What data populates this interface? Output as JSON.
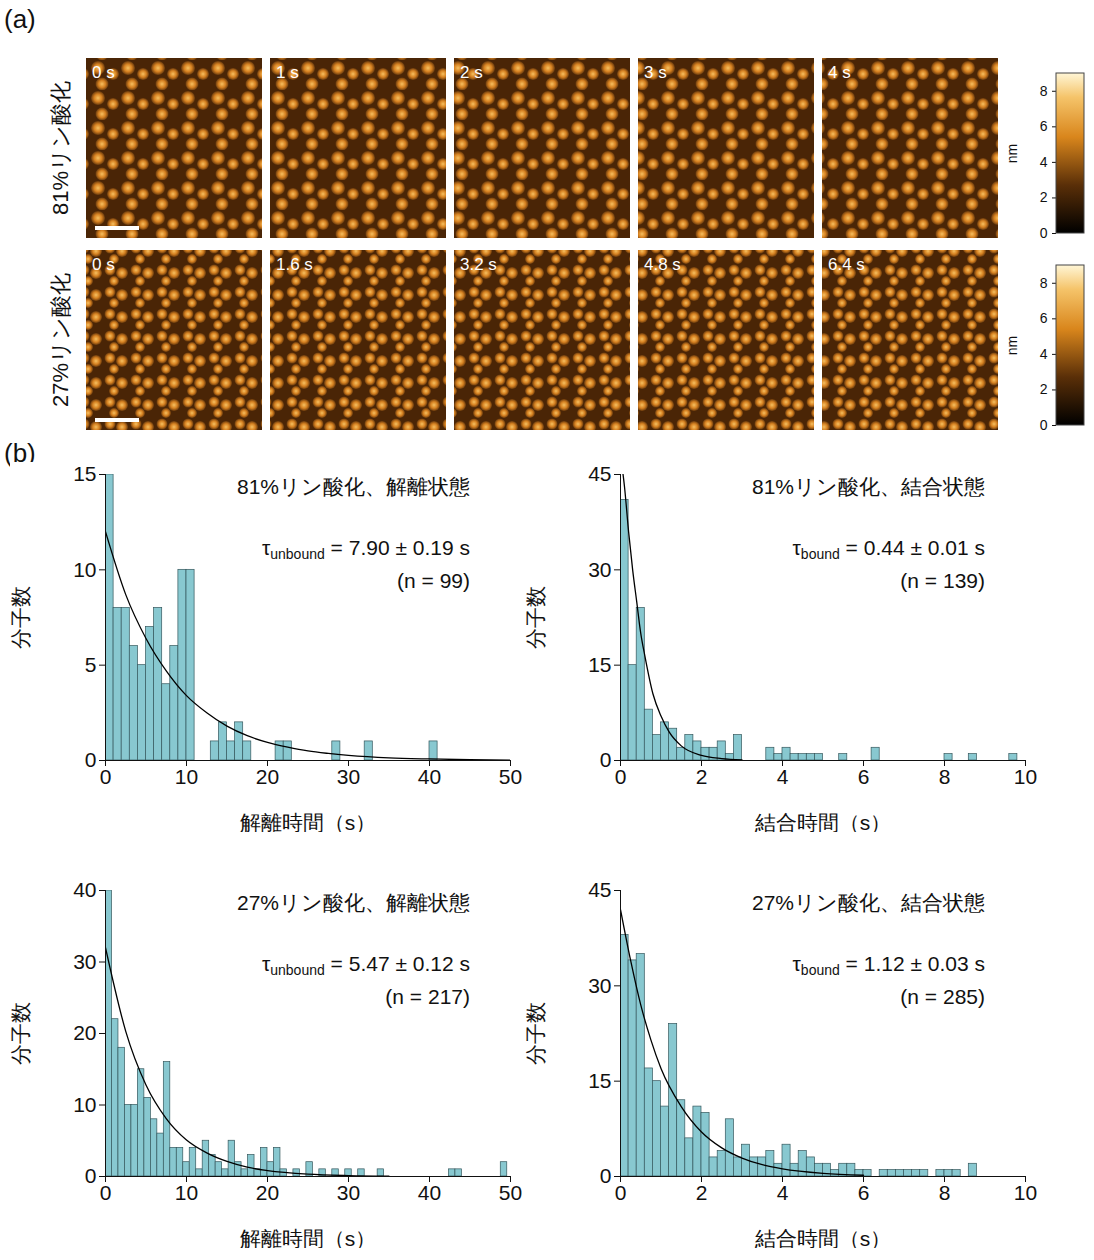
{
  "panel_a": {
    "letter": "(a)",
    "rows": [
      {
        "label": "81%リン酸化",
        "times": [
          "0 s",
          "1 s",
          "2 s",
          "3 s",
          "4 s"
        ],
        "colorbar": {
          "label": "nm",
          "lim": [
            0,
            9
          ],
          "ticks": [
            0,
            2,
            4,
            6,
            8
          ]
        }
      },
      {
        "label": "27%リン酸化",
        "times": [
          "0 s",
          "1.6 s",
          "3.2 s",
          "4.8 s",
          "6.4 s"
        ],
        "colorbar": {
          "label": "nm",
          "lim": [
            0,
            9
          ],
          "ticks": [
            0,
            2,
            4,
            6,
            8
          ]
        }
      }
    ]
  },
  "panel_b": {
    "letter": "(b)"
  },
  "chart_data": [
    {
      "type": "histogram",
      "title": "81%リン酸化、解離状態",
      "fit_label": {
        "symbol": "τ",
        "subscript": "unbound",
        "text": "= 7.90 ± 0.19 s"
      },
      "n_label": "(n = 99)",
      "x_label": "解離時間（s）",
      "y_label": "分子数",
      "color": "#88c8d0",
      "bins": [
        0,
        1,
        2,
        3,
        4,
        5,
        6,
        7,
        8,
        9,
        10,
        11,
        12,
        13,
        14,
        15,
        16,
        17,
        18,
        19,
        20,
        21,
        22,
        23,
        24,
        25,
        26,
        27,
        28,
        29,
        30,
        31,
        32,
        33,
        34,
        35,
        36,
        37,
        38,
        39,
        40,
        41
      ],
      "counts": [
        15,
        8,
        8,
        6,
        5,
        7,
        8,
        4,
        6,
        10,
        10,
        0,
        0,
        1,
        2,
        1,
        2,
        1,
        0,
        0,
        0,
        1,
        1,
        0,
        0,
        0,
        0,
        0,
        1,
        0,
        0,
        0,
        1,
        0,
        0,
        0,
        0,
        0,
        0,
        0,
        1
      ],
      "fit_curve": {
        "type": "line",
        "color": "#000000",
        "x": [
          0,
          2.5,
          5,
          7.5,
          10,
          12.5,
          15,
          17.5,
          20,
          22.5,
          25,
          27.5,
          30,
          35,
          40,
          45,
          50
        ],
        "y": [
          12.0,
          8.7,
          6.4,
          4.7,
          3.4,
          2.5,
          1.8,
          1.3,
          0.95,
          0.7,
          0.5,
          0.37,
          0.27,
          0.14,
          0.08,
          0.04,
          0.02
        ]
      },
      "xlim": [
        0,
        50
      ],
      "xticks": [
        0,
        10,
        20,
        30,
        40,
        50
      ],
      "ylim": [
        0,
        15
      ],
      "yticks": [
        0,
        5,
        10,
        15
      ]
    },
    {
      "type": "histogram",
      "title": "81%リン酸化、結合状態",
      "fit_label": {
        "symbol": "τ",
        "subscript": "bound",
        "text": "= 0.44 ± 0.01 s"
      },
      "n_label": "(n = 139)",
      "x_label": "結合時間（s）",
      "y_label": "分子数",
      "color": "#88c8d0",
      "bins": [
        0,
        0.2,
        0.4,
        0.6,
        0.8,
        1,
        1.2,
        1.4,
        1.6,
        1.8,
        2,
        2.2,
        2.4,
        2.6,
        2.8,
        3,
        3.2,
        3.4,
        3.6,
        3.8,
        4,
        4.2,
        4.4,
        4.6,
        4.8,
        5,
        5.2,
        5.4,
        5.6,
        5.8,
        6,
        6.2,
        6.4,
        6.6,
        6.8,
        7,
        7.2,
        7.4,
        7.6,
        7.8,
        8,
        8.2,
        8.4,
        8.6,
        8.8,
        9,
        9.2,
        9.4,
        9.6,
        9.8
      ],
      "counts": [
        41,
        15,
        24,
        8,
        4,
        6,
        5,
        2,
        4,
        3,
        2,
        2,
        3,
        1,
        4,
        0,
        0,
        0,
        2,
        1,
        2,
        1,
        1,
        1,
        1,
        0,
        0,
        1,
        0,
        0,
        0,
        2,
        0,
        0,
        0,
        0,
        0,
        0,
        0,
        0,
        1,
        0,
        0,
        1,
        0,
        0,
        0,
        0,
        1
      ],
      "fit_curve": {
        "type": "line",
        "color": "#000000",
        "x": [
          0,
          0.1,
          0.2,
          0.3,
          0.4,
          0.5,
          0.6,
          0.8,
          1.0,
          1.2,
          1.5,
          2.0,
          2.5,
          3.0
        ],
        "y": [
          48,
          43,
          36,
          30,
          25,
          20,
          16.5,
          10.5,
          7,
          4.5,
          2.3,
          0.8,
          0.3,
          0.1
        ]
      },
      "xlim": [
        0,
        10
      ],
      "xticks": [
        0,
        2,
        4,
        6,
        8,
        10
      ],
      "ylim": [
        0,
        45
      ],
      "yticks": [
        0,
        15,
        30,
        45
      ]
    },
    {
      "type": "histogram",
      "title": "27%リン酸化、解離状態",
      "fit_label": {
        "symbol": "τ",
        "subscript": "unbound",
        "text": "= 5.47 ± 0.12 s"
      },
      "n_label": "(n = 217)",
      "x_label": "解離時間（s）",
      "y_label": "分子数",
      "color": "#88c8d0",
      "bins": [
        0,
        0.8,
        1.6,
        2.4,
        3.2,
        4,
        4.8,
        5.6,
        6.4,
        7.2,
        8,
        8.8,
        9.6,
        10.4,
        11.2,
        12,
        12.8,
        13.6,
        14.4,
        15.2,
        16,
        16.8,
        17.6,
        18.4,
        19.2,
        20,
        20.8,
        21.6,
        22.4,
        23.2,
        24,
        24.8,
        25.6,
        26.4,
        27.2,
        28,
        28.8,
        29.6,
        30.4,
        31.2,
        32,
        32.8,
        33.6,
        34.4,
        35.2,
        36,
        36.8,
        37.6,
        38.4,
        39.2,
        40,
        40.8,
        41.6,
        42.4,
        43.2,
        44,
        44.8,
        45.6,
        46.4,
        47.2,
        48,
        48.8,
        49.6
      ],
      "counts": [
        40,
        22,
        18,
        10,
        10,
        15,
        11,
        8,
        6,
        16,
        4,
        4,
        2,
        4,
        1,
        5,
        3,
        2,
        1,
        5,
        2,
        1,
        3,
        1,
        4,
        2,
        4,
        1,
        0,
        1,
        0,
        2,
        0,
        1,
        0,
        1,
        0,
        1,
        0,
        1,
        0,
        0,
        1,
        0,
        0,
        0,
        0,
        0,
        0,
        0,
        0,
        0,
        0,
        1,
        1,
        0,
        0,
        0,
        0,
        0,
        0,
        2
      ],
      "fit_curve": {
        "type": "line",
        "color": "#000000",
        "x": [
          0,
          2.5,
          5,
          7.5,
          10,
          12.5,
          15,
          17.5,
          20,
          25,
          30,
          35
        ],
        "y": [
          32,
          20.3,
          12.8,
          8.1,
          5.1,
          3.3,
          2.1,
          1.3,
          0.83,
          0.33,
          0.13,
          0.05
        ]
      },
      "xlim": [
        0,
        50
      ],
      "xticks": [
        0,
        10,
        20,
        30,
        40,
        50
      ],
      "ylim": [
        0,
        40
      ],
      "yticks": [
        0,
        10,
        20,
        30,
        40
      ]
    },
    {
      "type": "histogram",
      "title": "27%リン酸化、結合状態",
      "fit_label": {
        "symbol": "τ",
        "subscript": "bound",
        "text": "= 1.12 ± 0.03 s"
      },
      "n_label": "(n = 285)",
      "x_label": "結合時間（s）",
      "y_label": "分子数",
      "color": "#88c8d0",
      "bins": [
        0,
        0.2,
        0.4,
        0.6,
        0.8,
        1,
        1.2,
        1.4,
        1.6,
        1.8,
        2,
        2.2,
        2.4,
        2.6,
        2.8,
        3,
        3.2,
        3.4,
        3.6,
        3.8,
        4,
        4.2,
        4.4,
        4.6,
        4.8,
        5,
        5.2,
        5.4,
        5.6,
        5.8,
        6,
        6.2,
        6.4,
        6.6,
        6.8,
        7,
        7.2,
        7.4,
        7.6,
        7.8,
        8,
        8.2,
        8.4,
        8.6,
        8.8
      ],
      "counts": [
        38,
        34,
        35,
        17,
        15,
        11,
        24,
        12,
        6,
        11,
        10,
        3,
        4,
        9,
        3,
        5,
        3,
        3,
        4,
        2,
        5,
        2,
        4,
        3,
        2,
        2,
        1,
        2,
        2,
        1,
        1,
        0,
        1,
        1,
        1,
        1,
        1,
        1,
        0,
        1,
        1,
        1,
        0,
        2
      ],
      "fit_curve": {
        "type": "line",
        "color": "#000000",
        "x": [
          0,
          0.25,
          0.5,
          0.75,
          1.0,
          1.5,
          2.0,
          2.5,
          3.0,
          3.5,
          4.0,
          5.0,
          6.0
        ],
        "y": [
          42,
          34,
          27,
          21.5,
          17,
          11,
          7,
          4.5,
          2.9,
          1.85,
          1.2,
          0.5,
          0.2
        ]
      },
      "xlim": [
        0,
        10
      ],
      "xticks": [
        0,
        2,
        4,
        6,
        8,
        10
      ],
      "ylim": [
        0,
        45
      ],
      "yticks": [
        0,
        15,
        30,
        45
      ]
    }
  ]
}
